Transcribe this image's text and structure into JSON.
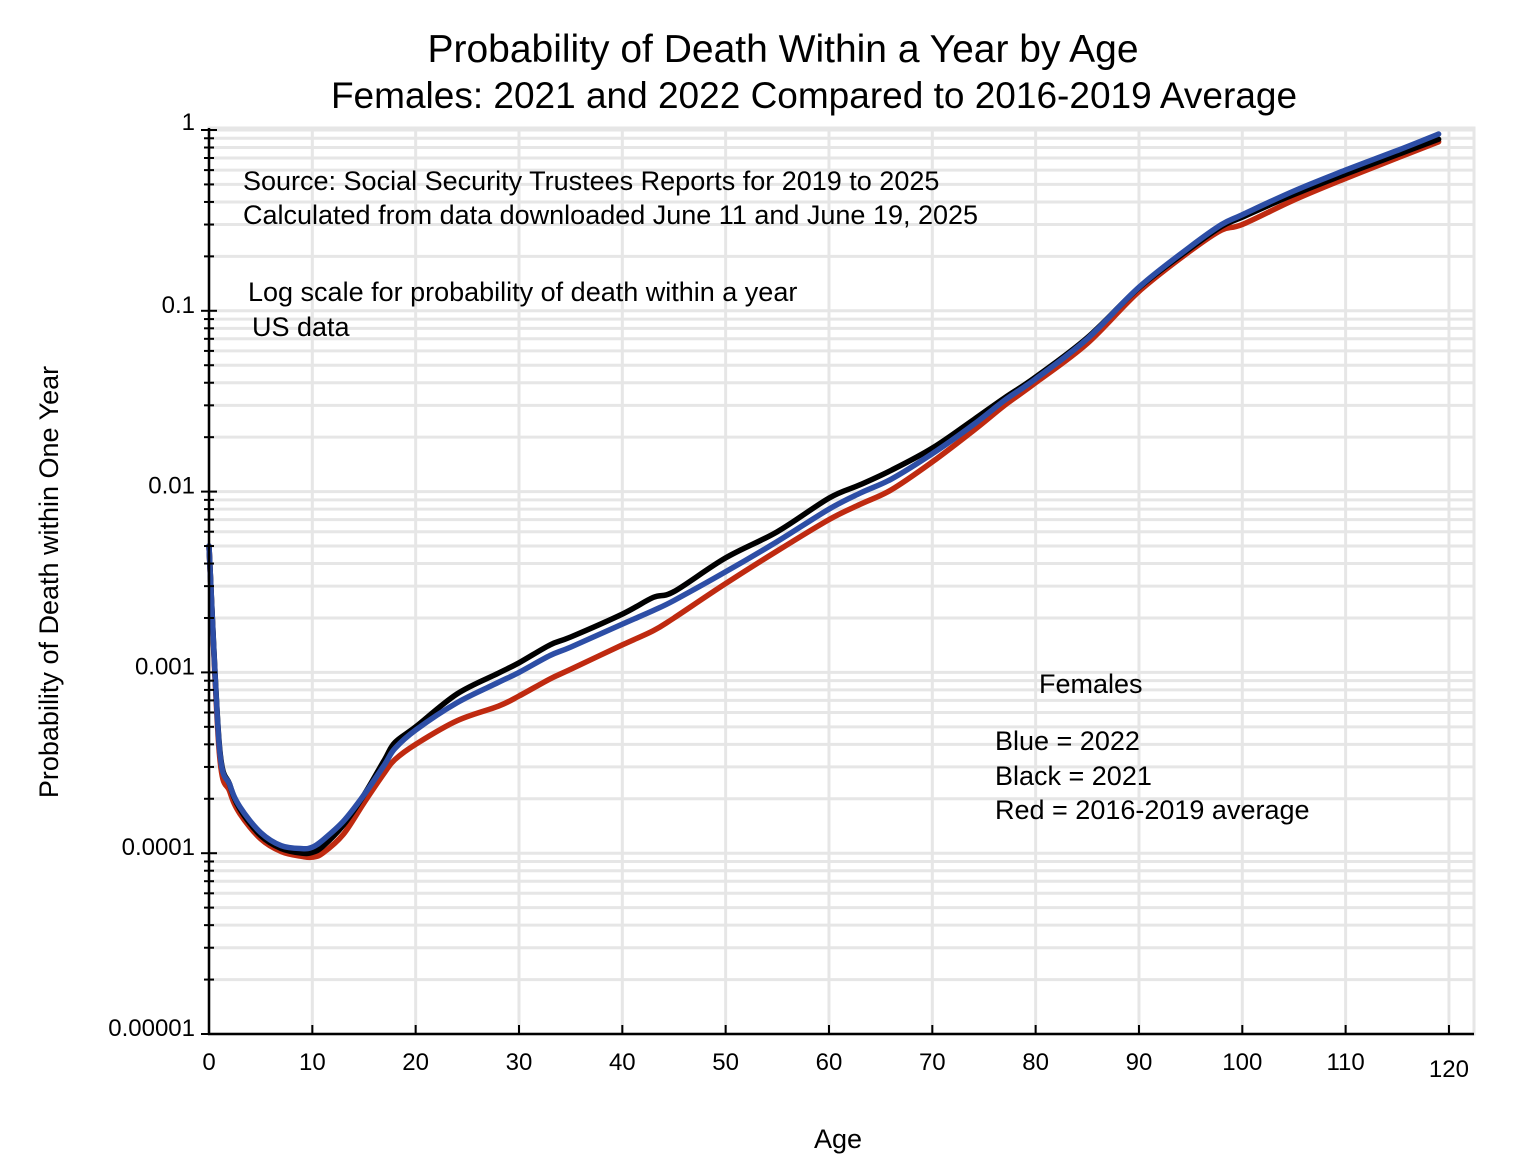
{
  "chart_data": {
    "type": "line",
    "title": "Probability of Death Within a Year by Age",
    "subtitle": "Females:  2021 and 2022 Compared to 2016-2019 Average",
    "xlabel": "Age",
    "ylabel": "Probability of Death within One Year",
    "xlim": [
      0,
      122
    ],
    "ylim": [
      1e-05,
      1
    ],
    "yscale": "log",
    "grid": true,
    "x_ticks": [
      "0",
      "10",
      "20",
      "30",
      "40",
      "50",
      "60",
      "70",
      "80",
      "90",
      "100",
      "110",
      "120"
    ],
    "x_tick_values": [
      0,
      10,
      20,
      30,
      40,
      50,
      60,
      70,
      80,
      90,
      100,
      110,
      120
    ],
    "y_ticks": [
      "1",
      "0.1",
      "0.01",
      "0.001",
      "0.0001",
      "0.00001"
    ],
    "y_tick_values": [
      1,
      0.1,
      0.01,
      0.001,
      0.0001,
      1e-05
    ],
    "annotations": [
      "Source:  Social Security Trustees Reports for 2019 to 2025",
      "Calculated from data downloaded June 11 and June 19, 2025",
      "Log scale for probability of death within a year",
      "US data",
      "Females",
      "Blue = 2022",
      "Black = 2021",
      "Red = 2016-2019 average"
    ],
    "legend_placement": "center-right (text annotation)",
    "series": [
      {
        "name": "2021",
        "color": "#000000",
        "x": [
          0,
          1,
          2,
          3,
          5,
          7,
          9,
          10,
          11,
          13,
          15,
          17,
          18,
          20,
          24,
          28,
          30,
          33,
          35,
          40,
          43,
          45,
          50,
          55,
          60,
          63,
          66,
          70,
          74,
          77,
          80,
          85,
          90,
          95,
          98,
          100,
          105,
          110,
          115,
          119
        ],
        "values": [
          0.005,
          0.0004,
          0.00024,
          0.000175,
          0.000125,
          0.000106,
          0.0001,
          0.000101,
          0.000109,
          0.000143,
          0.00021,
          0.00033,
          0.00041,
          0.0005,
          0.00076,
          0.00099,
          0.00113,
          0.00142,
          0.00157,
          0.0021,
          0.0026,
          0.0028,
          0.0043,
          0.006,
          0.0092,
          0.0109,
          0.0131,
          0.0174,
          0.025,
          0.033,
          0.043,
          0.071,
          0.134,
          0.222,
          0.293,
          0.33,
          0.44,
          0.57,
          0.73,
          0.89
        ]
      },
      {
        "name": "2022",
        "color": "#2d4ea6",
        "x": [
          0,
          1,
          2,
          3,
          5,
          7,
          9,
          10,
          11,
          13,
          15,
          17,
          18,
          20,
          24,
          28,
          30,
          33,
          35,
          40,
          43,
          45,
          50,
          55,
          60,
          63,
          66,
          70,
          74,
          77,
          80,
          85,
          90,
          95,
          98,
          100,
          105,
          110,
          115,
          119
        ],
        "values": [
          0.005,
          0.00039,
          0.00024,
          0.00018,
          0.00013,
          0.00011,
          0.000106,
          0.000108,
          0.000118,
          0.00015,
          0.00021,
          0.00031,
          0.00038,
          0.00048,
          0.00068,
          0.00088,
          0.001,
          0.00124,
          0.00138,
          0.00185,
          0.0022,
          0.0025,
          0.0036,
          0.0053,
          0.008,
          0.0098,
          0.0117,
          0.0162,
          0.0235,
          0.032,
          0.042,
          0.07,
          0.135,
          0.227,
          0.3,
          0.34,
          0.46,
          0.6,
          0.77,
          0.95
        ]
      },
      {
        "name": "2016-2019 average",
        "color": "#bf2a10",
        "x": [
          0,
          1,
          2,
          3,
          5,
          7,
          9,
          10,
          11,
          13,
          15,
          17,
          18,
          20,
          24,
          28,
          30,
          33,
          35,
          40,
          43,
          45,
          50,
          55,
          60,
          63,
          66,
          70,
          74,
          77,
          80,
          85,
          90,
          95,
          98,
          100,
          105,
          110,
          115,
          119
        ],
        "values": [
          0.005,
          0.00036,
          0.00022,
          0.000165,
          0.00012,
          0.000102,
          9.6e-05,
          9.5e-05,
          0.0001,
          0.000127,
          0.00019,
          0.00028,
          0.00033,
          0.0004,
          0.00054,
          0.00065,
          0.00074,
          0.00092,
          0.00104,
          0.00142,
          0.0017,
          0.002,
          0.0031,
          0.0047,
          0.007,
          0.0085,
          0.0102,
          0.0146,
          0.0218,
          0.03,
          0.04,
          0.066,
          0.128,
          0.215,
          0.28,
          0.3,
          0.41,
          0.54,
          0.7,
          0.86
        ]
      }
    ]
  }
}
